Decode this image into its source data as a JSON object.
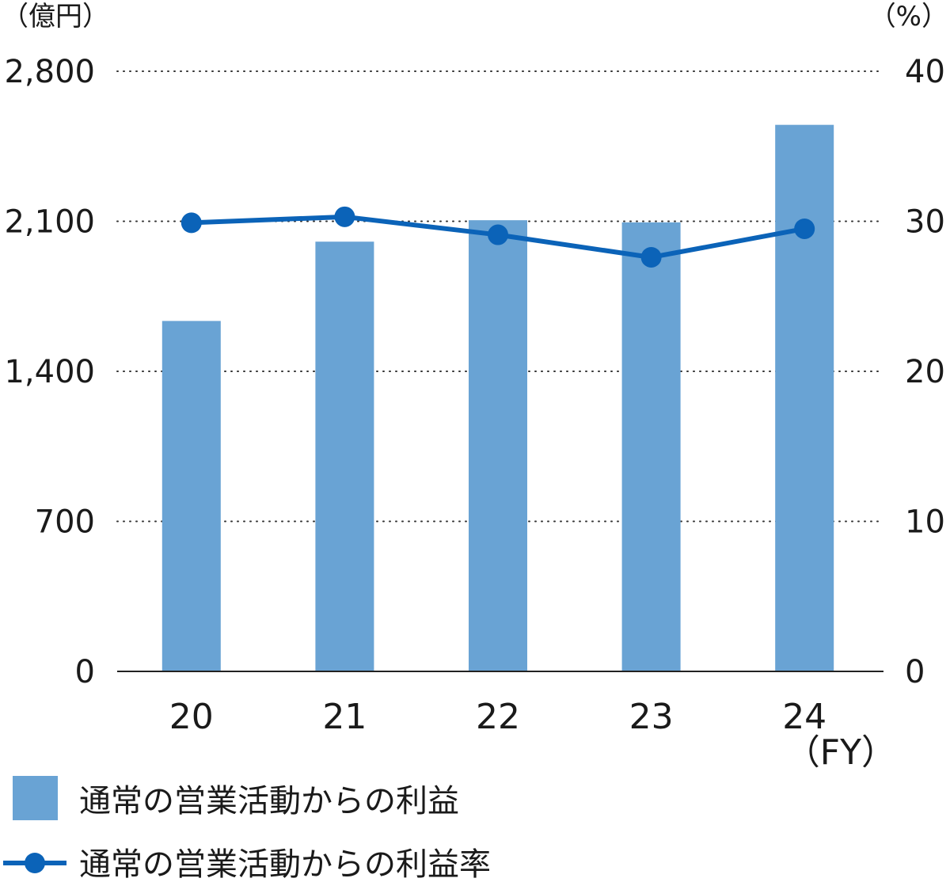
{
  "chart_data": {
    "type": "bar",
    "categories": [
      "20",
      "21",
      "22",
      "23",
      "24"
    ],
    "x_unit": "（FY）",
    "series": [
      {
        "name": "通常の営業活動からの利益",
        "type": "bar",
        "axis": "left",
        "color": "#69a3d4",
        "values": [
          1635,
          2005,
          2105,
          2095,
          2550
        ]
      },
      {
        "name": "通常の営業活動からの利益率",
        "type": "line",
        "axis": "right",
        "color": "#0b63b8",
        "values": [
          29.9,
          30.3,
          29.1,
          27.6,
          29.5
        ]
      }
    ],
    "y_left": {
      "unit": "（億円）",
      "ticks": [
        "0",
        "700",
        "1,400",
        "2,100",
        "2,800"
      ],
      "range": [
        0,
        2800
      ]
    },
    "y_right": {
      "unit": "（%）",
      "ticks": [
        "0",
        "10",
        "20",
        "30",
        "40"
      ],
      "range": [
        0,
        40
      ]
    },
    "grid": "dotted horizontal",
    "legend_position": "bottom-left"
  }
}
